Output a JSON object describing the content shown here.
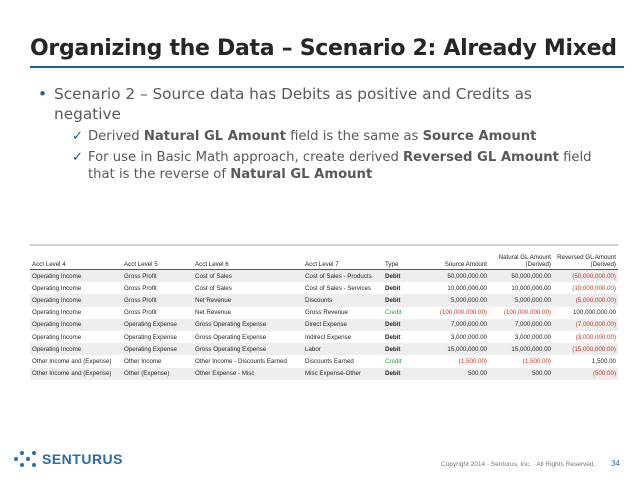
{
  "slide": {
    "title": "Organizing the Data – Scenario 2: Already Mixed",
    "bullet": "Scenario 2 – Source data has Debits as positive and Credits as negative",
    "bullet_marker": "•",
    "check_marker": "✓",
    "sub1": {
      "t1": "Derived ",
      "b1": "Natural GL Amount",
      "t2": " field is the same as ",
      "b2": "Source Amount",
      "t3": ""
    },
    "sub2": {
      "t1": "For use in Basic Math approach, create derived ",
      "b1": "Reversed GL Amount",
      "t2": " field that is the reverse of ",
      "b2": "Natural GL Amount",
      "t3": ""
    }
  },
  "table": {
    "headers": [
      "Acct Level 4",
      "Acct Level 5",
      "Acct Level 6",
      "Acct Level 7",
      "Type",
      "Source Amount",
      "Natural GL Amount (Derived)",
      "Reversed GL Amount (Derived)"
    ],
    "rows": [
      [
        "Operating Income",
        "Gross Profit",
        "Cost of Sales",
        "Cost of Sales - Products",
        "Debit",
        "50,000,000.00",
        "50,000,000.00",
        "(50,000,000.00)"
      ],
      [
        "Operating Income",
        "Gross Profit",
        "Cost of Sales",
        "Cost of Sales - Services",
        "Debit",
        "10,000,000.00",
        "10,000,000.00",
        "(10,000,000.00)"
      ],
      [
        "Operating Income",
        "Gross Profit",
        "Net Revenue",
        "Discounts",
        "Debit",
        "5,000,000.00",
        "5,000,000.00",
        "(5,000,000.00)"
      ],
      [
        "Operating Income",
        "Gross Profit",
        "Net Revenue",
        "Gross Revenue",
        "Credit",
        "(100,000,000.00)",
        "(100,000,000.00)",
        "100,000,000.00"
      ],
      [
        "Operating Income",
        "Operating Expense",
        "Gross Operating Expense",
        "Direct Expense",
        "Debit",
        "7,000,000.00",
        "7,000,000.00",
        "(7,000,000.00)"
      ],
      [
        "Operating Income",
        "Operating Expense",
        "Gross Operating Expense",
        "Indirect Expense",
        "Debit",
        "3,000,000.00",
        "3,000,000.00",
        "(3,000,000.00)"
      ],
      [
        "Operating Income",
        "Operating Expense",
        "Gross Operating Expense",
        "Labor",
        "Debit",
        "15,000,000.00",
        "15,000,000.00",
        "(15,000,000.00)"
      ],
      [
        "Other Income and (Expense)",
        "Other Income",
        "Other Income - Discounts Earned",
        "Discounts Earned",
        "Credit",
        "(1,500.00)",
        "(1,500.00)",
        "1,500.00"
      ],
      [
        "Other Income and (Expense)",
        "Other (Expense)",
        "Other Expense - Misc",
        "Misc Expense-Other",
        "Debit",
        "500.00",
        "500.00",
        "(500.00)"
      ]
    ]
  },
  "footer": {
    "logo_text": "SENTURUS",
    "copyright": "Copyright 2014 · Senturus, Inc. · All Rights Reserved.",
    "page_number": "34"
  },
  "colors": {
    "accent": "#1f5f8b",
    "negative": "#c0392b",
    "credit": "#2ea043"
  }
}
